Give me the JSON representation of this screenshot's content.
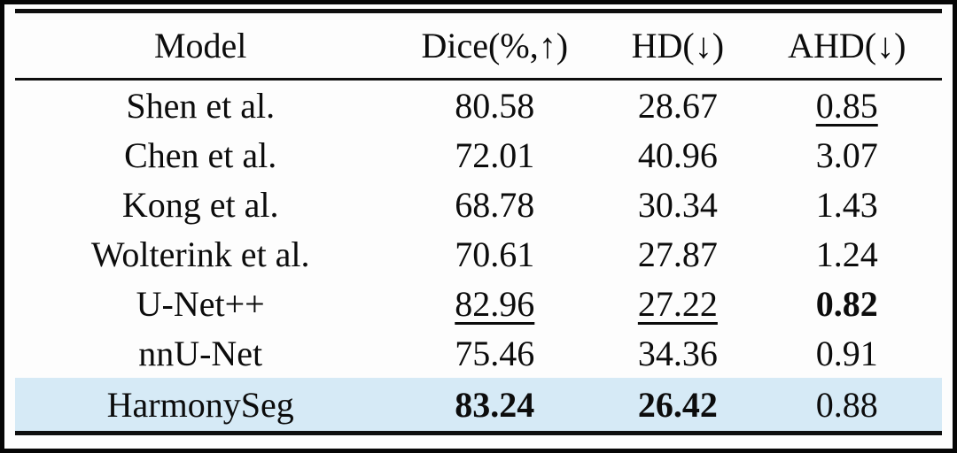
{
  "table": {
    "columns": [
      {
        "label": "Model"
      },
      {
        "label": "Dice(%,↑)"
      },
      {
        "label": "HD(↓)"
      },
      {
        "label": "AHD(↓)"
      }
    ],
    "rows": [
      {
        "cells": [
          {
            "text": "Shen et al.",
            "style": ""
          },
          {
            "text": "80.58",
            "style": ""
          },
          {
            "text": "28.67",
            "style": ""
          },
          {
            "text": "0.85",
            "style": "underline"
          }
        ]
      },
      {
        "cells": [
          {
            "text": "Chen et al.",
            "style": ""
          },
          {
            "text": "72.01",
            "style": ""
          },
          {
            "text": "40.96",
            "style": ""
          },
          {
            "text": "3.07",
            "style": ""
          }
        ]
      },
      {
        "cells": [
          {
            "text": "Kong et al.",
            "style": ""
          },
          {
            "text": "68.78",
            "style": ""
          },
          {
            "text": "30.34",
            "style": ""
          },
          {
            "text": "1.43",
            "style": ""
          }
        ]
      },
      {
        "cells": [
          {
            "text": "Wolterink et al.",
            "style": ""
          },
          {
            "text": "70.61",
            "style": ""
          },
          {
            "text": "27.87",
            "style": ""
          },
          {
            "text": "1.24",
            "style": ""
          }
        ]
      },
      {
        "cells": [
          {
            "text": "U-Net++",
            "style": ""
          },
          {
            "text": "82.96",
            "style": "underline"
          },
          {
            "text": "27.22",
            "style": "underline"
          },
          {
            "text": "0.82",
            "style": "bold"
          }
        ]
      },
      {
        "cells": [
          {
            "text": "nnU-Net",
            "style": ""
          },
          {
            "text": "75.46",
            "style": ""
          },
          {
            "text": "34.36",
            "style": ""
          },
          {
            "text": "0.91",
            "style": ""
          }
        ]
      },
      {
        "cells": [
          {
            "text": "HarmonySeg",
            "style": ""
          },
          {
            "text": "83.24",
            "style": "bold"
          },
          {
            "text": "26.42",
            "style": "bold"
          },
          {
            "text": "0.88",
            "style": ""
          }
        ]
      }
    ],
    "highlight_row_index": 6,
    "highlight_color": "#d6eaf6"
  }
}
